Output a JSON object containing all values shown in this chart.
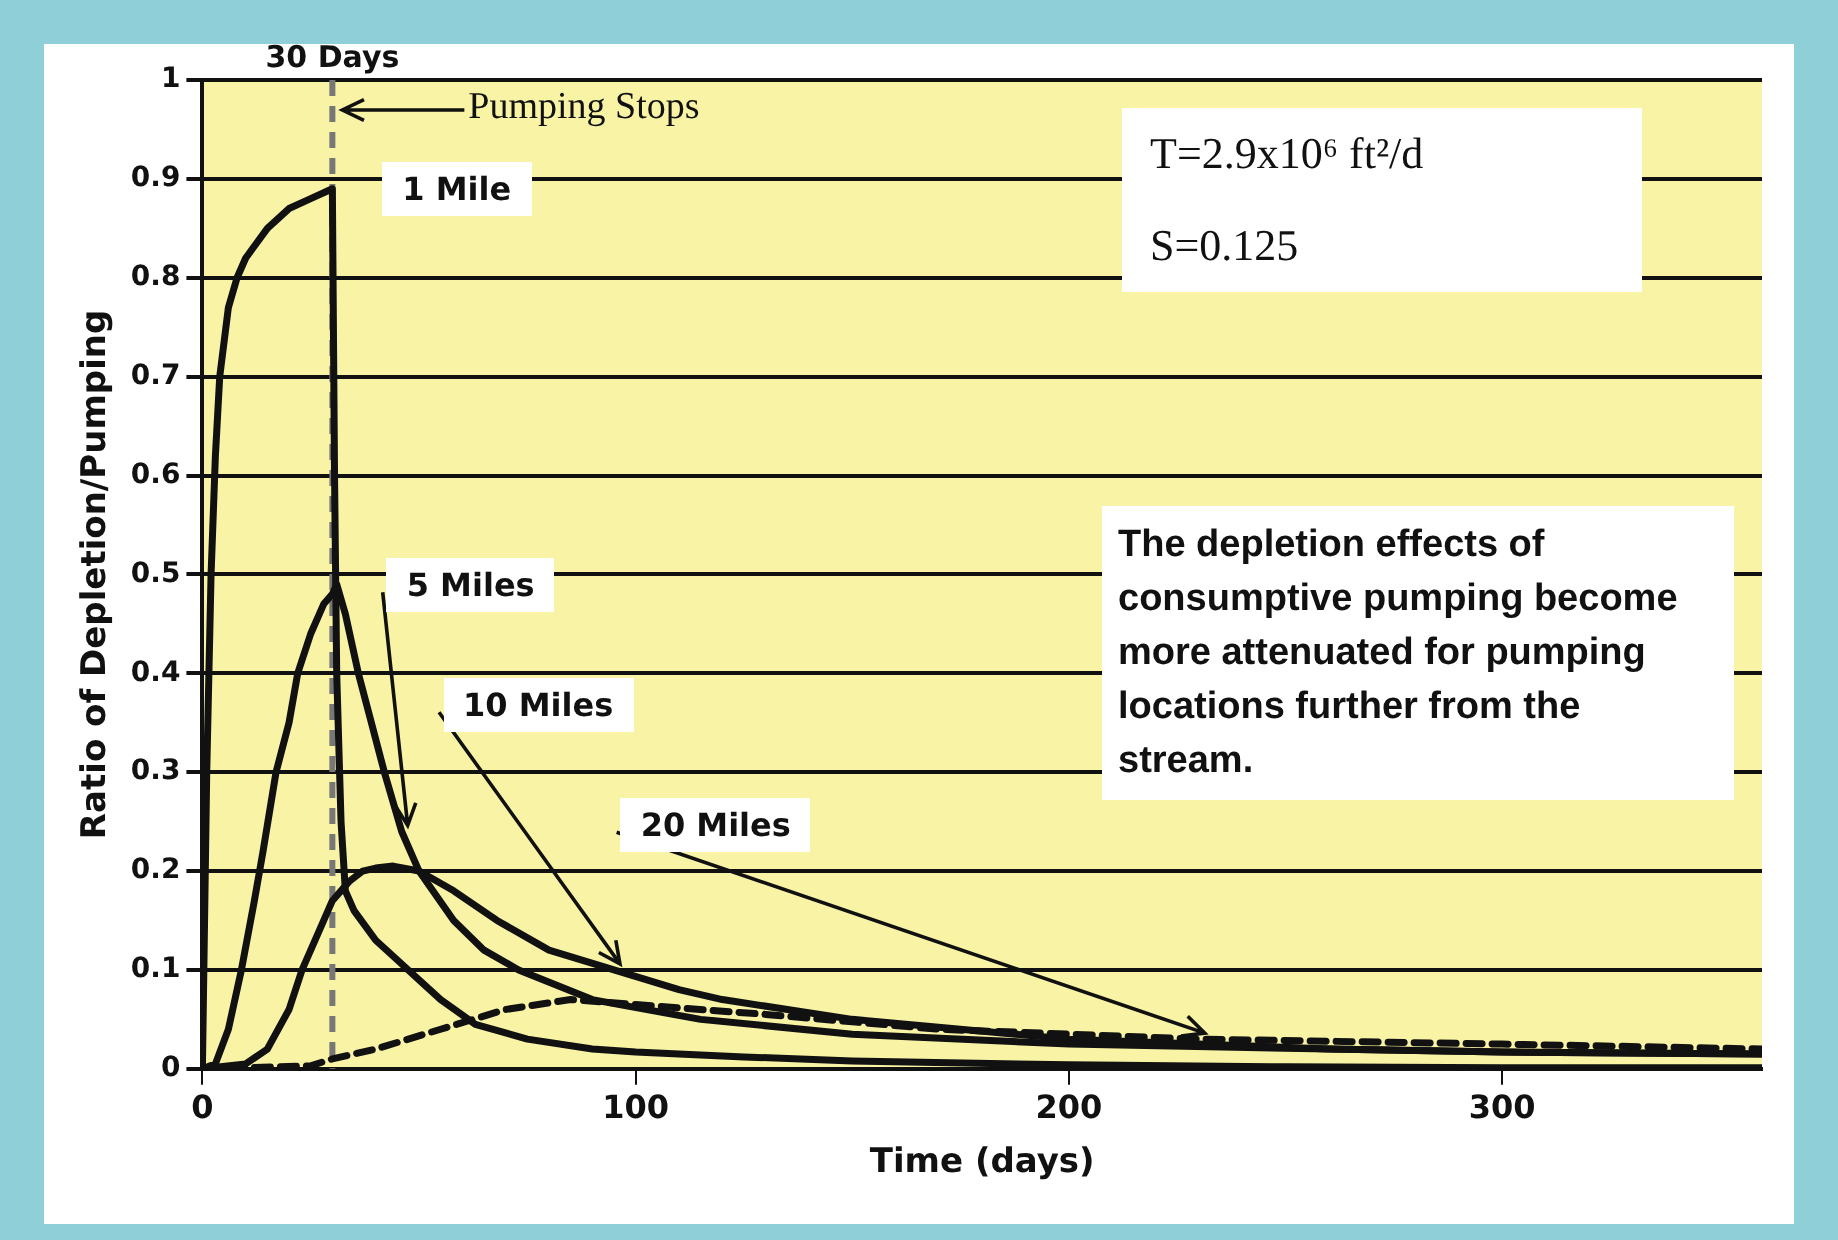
{
  "chart_data": {
    "type": "line",
    "xlabel": "Time (days)",
    "ylabel": "Ratio of Depletion/Pumping",
    "xlim": [
      0,
      360
    ],
    "xticks": [
      0,
      100,
      200,
      300
    ],
    "ylim": [
      0,
      1
    ],
    "yticks": [
      0,
      0.1,
      0.2,
      0.3,
      0.4,
      0.5,
      0.6,
      0.7,
      0.8,
      0.9,
      1
    ],
    "grid": "y",
    "legend": false,
    "marker": "none",
    "series": [
      {
        "name": "1 Mile",
        "color": "#111111",
        "line_style": "solid",
        "x": [
          0,
          1,
          2,
          3,
          4,
          6,
          8,
          10,
          15,
          20,
          25,
          30,
          30.5,
          31,
          32,
          33,
          35,
          40,
          45,
          50,
          55,
          63,
          75,
          90,
          100,
          125,
          150,
          200,
          250,
          300,
          360
        ],
        "values": [
          0,
          0.3,
          0.5,
          0.62,
          0.7,
          0.77,
          0.8,
          0.82,
          0.85,
          0.87,
          0.88,
          0.89,
          0.6,
          0.4,
          0.25,
          0.18,
          0.16,
          0.13,
          0.11,
          0.09,
          0.07,
          0.045,
          0.03,
          0.02,
          0.017,
          0.012,
          0.008,
          0.004,
          0.002,
          0.001,
          0.001
        ]
      },
      {
        "name": "5 Miles",
        "color": "#111111",
        "line_style": "solid",
        "x": [
          0,
          3,
          6,
          9,
          12,
          14,
          17,
          20,
          22,
          25,
          28,
          30,
          31,
          33,
          36,
          39,
          42,
          46,
          50,
          58,
          65,
          73,
          90,
          115,
          150,
          200,
          260,
          300,
          360
        ],
        "values": [
          0,
          0.005,
          0.04,
          0.1,
          0.17,
          0.22,
          0.3,
          0.35,
          0.4,
          0.44,
          0.47,
          0.48,
          0.49,
          0.46,
          0.4,
          0.35,
          0.3,
          0.24,
          0.2,
          0.15,
          0.12,
          0.1,
          0.07,
          0.05,
          0.035,
          0.025,
          0.02,
          0.017,
          0.015
        ]
      },
      {
        "name": "10 Miles",
        "color": "#111111",
        "line_style": "solid",
        "x": [
          0,
          10,
          15,
          20,
          23,
          27,
          30,
          34,
          37,
          40,
          44,
          50,
          58,
          68,
          80,
          95,
          110,
          120,
          150,
          200,
          260,
          300,
          360
        ],
        "values": [
          0,
          0.005,
          0.02,
          0.06,
          0.1,
          0.14,
          0.17,
          0.19,
          0.2,
          0.203,
          0.205,
          0.2,
          0.18,
          0.15,
          0.12,
          0.1,
          0.08,
          0.07,
          0.05,
          0.03,
          0.02,
          0.017,
          0.015
        ]
      },
      {
        "name": "20 Miles",
        "color": "#111111",
        "line_style": "dashed",
        "x": [
          0,
          25,
          30,
          40,
          55,
          70,
          85,
          100,
          130,
          170,
          230,
          300,
          360
        ],
        "values": [
          0,
          0.003,
          0.01,
          0.02,
          0.04,
          0.06,
          0.07,
          0.065,
          0.055,
          0.04,
          0.03,
          0.025,
          0.02
        ]
      }
    ],
    "ref_lines": [
      {
        "axis": "x",
        "value": 30,
        "label": "30 Days",
        "color": "#777777",
        "line_style": "dashed"
      }
    ],
    "annotations": [
      "Pumping Stops",
      "T=2.9x10⁶ ft²/d",
      "S=0.125",
      "The depletion effects of consumptive pumping become more attenuated for pumping locations further from the stream."
    ]
  }
}
